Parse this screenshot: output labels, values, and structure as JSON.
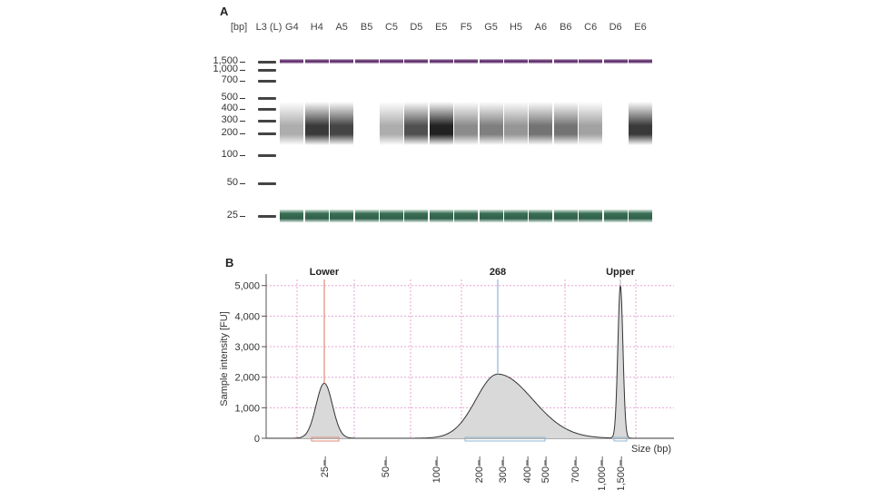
{
  "panel_a": {
    "label": "A",
    "bp_header": "[bp]",
    "lanes": [
      "L3 (L)",
      "G4",
      "H4",
      "A5",
      "B5",
      "C5",
      "D5",
      "E5",
      "F5",
      "G5",
      "H5",
      "A6",
      "B6",
      "C6",
      "D6",
      "E6"
    ],
    "size_labels": [
      "1,500",
      "1,000",
      "700",
      "500",
      "400",
      "300",
      "200",
      "100",
      "50",
      "25"
    ],
    "size_values": [
      1500,
      1000,
      700,
      500,
      400,
      300,
      200,
      100,
      50,
      25
    ],
    "band_intensity": [
      0,
      0.35,
      0.85,
      0.8,
      0,
      0.35,
      0.75,
      0.95,
      0.5,
      0.55,
      0.45,
      0.6,
      0.6,
      0.4,
      0,
      0.85
    ],
    "upper_marker_color": "#5b2a66",
    "lower_marker_color": "#2f5f49"
  },
  "panel_b": {
    "label": "B"
  },
  "chart_data": {
    "type": "line",
    "title": "",
    "xlabel": "Size (bp)",
    "ylabel": "Sample intensity [FU]",
    "ylim": [
      0,
      5200
    ],
    "x_ticks": [
      "25",
      "50",
      "100",
      "200",
      "300",
      "400",
      "500",
      "700",
      "1,000",
      "1,500"
    ],
    "y_ticks": [
      "0",
      "1,000",
      "2,000",
      "3,000",
      "4,000",
      "5,000"
    ],
    "y_tick_values": [
      0,
      1000,
      2000,
      3000,
      4000,
      5000
    ],
    "peaks": [
      {
        "label": "Lower",
        "size_bp": 25,
        "intensity": 1800,
        "line_color": "#e08a7a"
      },
      {
        "label": "268",
        "size_bp": 268,
        "intensity": 2100,
        "line_color": "#8fb4d0"
      },
      {
        "label": "Upper",
        "size_bp": 1500,
        "intensity": 5000,
        "line_color": "#c0c0c0"
      }
    ],
    "grid": true,
    "fill_color": "#d9d9d9",
    "line_color": "#333333"
  }
}
